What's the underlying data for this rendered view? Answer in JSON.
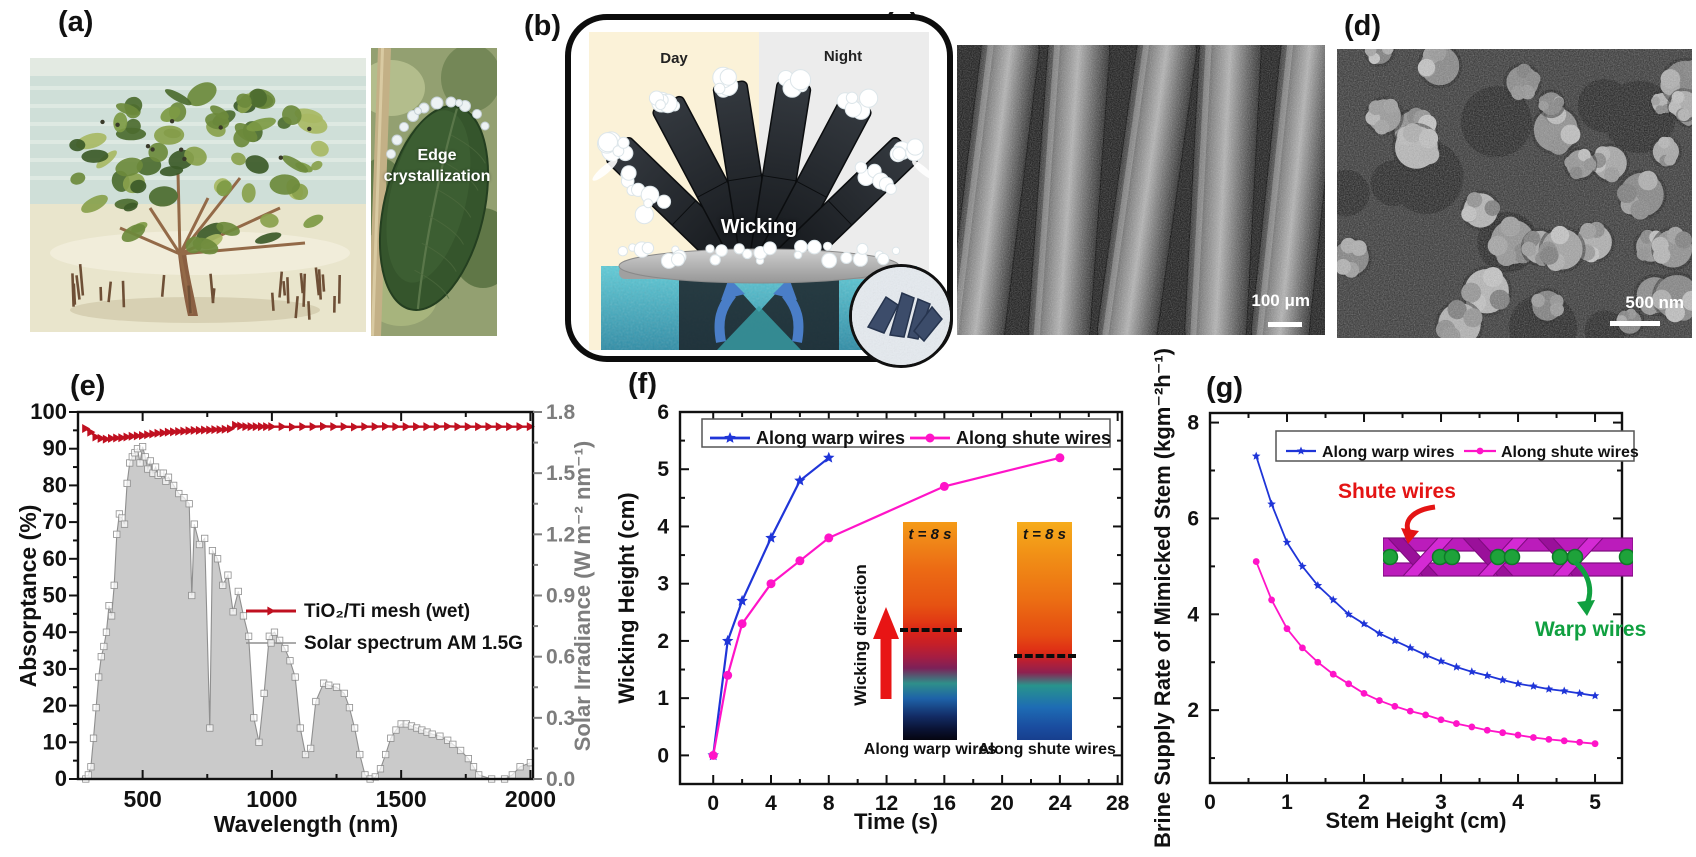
{
  "panels": {
    "a": "(a)",
    "b": "(b)",
    "c": "(c)",
    "d": "(d)",
    "e": "(e)",
    "f": "(f)",
    "g": "(g)"
  },
  "panel_a": {
    "leaf_label": "Edge crystallization"
  },
  "panel_b": {
    "day": "Day",
    "night": "Night",
    "wicking": "Wicking"
  },
  "panel_c": {
    "scale_bar": "100 μm"
  },
  "panel_d": {
    "scale_bar": "500 nm"
  },
  "panel_f_inset": {
    "t_label": "t = 8 s",
    "direction": "Wicking direction",
    "caption_left": "Along warp wires",
    "caption_right": "Along shute wires"
  },
  "panel_g_inset": {
    "shute": "Shute wires",
    "warp": "Warp wires"
  },
  "colors": {
    "warp_blue": "#1f35d8",
    "shute_magenta": "#ff14c8",
    "absorptance_red": "#c01020",
    "spectrum_gray": "#8f8f8f",
    "spectrum_fill": "#cacaca",
    "right_axis_gray": "#7d7d7d",
    "shute_label_red": "#e41414",
    "warp_label_green": "#10a040"
  },
  "chart_data": [
    {
      "id": "e",
      "type": "area",
      "title": "",
      "xlabel": "Wavelength (nm)",
      "ylabel_left": "Absorptance (%)",
      "ylabel_right": "Solar Irradiance (W m⁻² nm⁻¹)",
      "xlim": [
        250,
        2010
      ],
      "ylim_left": [
        0,
        100
      ],
      "ylim_right": [
        0,
        1.8
      ],
      "xticks": [
        500,
        1000,
        1500,
        2000
      ],
      "xminor": [
        750,
        1250,
        1750
      ],
      "yticks_left": [
        0,
        10,
        20,
        30,
        40,
        50,
        60,
        70,
        80,
        90,
        100
      ],
      "yminor_left": [
        5,
        15,
        25,
        35,
        45,
        55,
        65,
        75,
        85,
        95
      ],
      "yticks_right": {
        "values": [
          0,
          0.3,
          0.6,
          0.9,
          1.2,
          1.5,
          1.8
        ],
        "labels": [
          "0.0",
          "0.3",
          "0.6",
          "0.9",
          "1.2",
          "1.5",
          "1.8"
        ]
      },
      "yminor_right": [
        0.15,
        0.45,
        0.75,
        1.05,
        1.35,
        1.65
      ],
      "legend": {
        "position": "center-right-inside",
        "box": false,
        "items": [
          "TiO₂/Ti mesh (wet)",
          "Solar spectrum AM 1.5G"
        ]
      },
      "series": [
        {
          "name": "Solar spectrum AM 1.5G",
          "axis": "right",
          "type": "area",
          "marker": "square",
          "color": "#8f8f8f",
          "fill": "#cacaca",
          "data": [
            [
              280,
              0
            ],
            [
              290,
              0.02
            ],
            [
              300,
              0.06
            ],
            [
              310,
              0.2
            ],
            [
              320,
              0.35
            ],
            [
              330,
              0.5
            ],
            [
              340,
              0.6
            ],
            [
              350,
              0.65
            ],
            [
              360,
              0.72
            ],
            [
              370,
              0.85
            ],
            [
              380,
              0.8
            ],
            [
              390,
              0.95
            ],
            [
              400,
              1.2
            ],
            [
              410,
              1.3
            ],
            [
              420,
              1.28
            ],
            [
              430,
              1.25
            ],
            [
              440,
              1.45
            ],
            [
              450,
              1.55
            ],
            [
              460,
              1.58
            ],
            [
              470,
              1.6
            ],
            [
              480,
              1.62
            ],
            [
              490,
              1.55
            ],
            [
              500,
              1.63
            ],
            [
              510,
              1.58
            ],
            [
              520,
              1.52
            ],
            [
              530,
              1.56
            ],
            [
              540,
              1.5
            ],
            [
              550,
              1.53
            ],
            [
              560,
              1.49
            ],
            [
              570,
              1.5
            ],
            [
              580,
              1.5
            ],
            [
              590,
              1.46
            ],
            [
              600,
              1.48
            ],
            [
              620,
              1.44
            ],
            [
              640,
              1.4
            ],
            [
              660,
              1.38
            ],
            [
              680,
              1.35
            ],
            [
              690,
              0.9
            ],
            [
              700,
              1.25
            ],
            [
              720,
              1.15
            ],
            [
              740,
              1.18
            ],
            [
              760,
              0.25
            ],
            [
              770,
              1.12
            ],
            [
              790,
              1.08
            ],
            [
              810,
              0.95
            ],
            [
              830,
              1.0
            ],
            [
              850,
              0.82
            ],
            [
              870,
              0.92
            ],
            [
              890,
              0.8
            ],
            [
              910,
              0.7
            ],
            [
              930,
              0.3
            ],
            [
              950,
              0.18
            ],
            [
              970,
              0.42
            ],
            [
              990,
              0.7
            ],
            [
              1010,
              0.72
            ],
            [
              1030,
              0.68
            ],
            [
              1050,
              0.64
            ],
            [
              1070,
              0.58
            ],
            [
              1090,
              0.5
            ],
            [
              1110,
              0.25
            ],
            [
              1130,
              0.12
            ],
            [
              1150,
              0.15
            ],
            [
              1170,
              0.38
            ],
            [
              1200,
              0.47
            ],
            [
              1220,
              0.46
            ],
            [
              1250,
              0.45
            ],
            [
              1280,
              0.42
            ],
            [
              1300,
              0.35
            ],
            [
              1320,
              0.25
            ],
            [
              1340,
              0.12
            ],
            [
              1360,
              0.02
            ],
            [
              1380,
              0
            ],
            [
              1400,
              0.01
            ],
            [
              1420,
              0.05
            ],
            [
              1440,
              0.12
            ],
            [
              1460,
              0.2
            ],
            [
              1480,
              0.24
            ],
            [
              1500,
              0.27
            ],
            [
              1520,
              0.27
            ],
            [
              1540,
              0.26
            ],
            [
              1560,
              0.25
            ],
            [
              1580,
              0.24
            ],
            [
              1600,
              0.23
            ],
            [
              1620,
              0.22
            ],
            [
              1650,
              0.21
            ],
            [
              1680,
              0.19
            ],
            [
              1700,
              0.17
            ],
            [
              1730,
              0.14
            ],
            [
              1760,
              0.1
            ],
            [
              1780,
              0.06
            ],
            [
              1800,
              0.02
            ],
            [
              1850,
              0
            ],
            [
              1900,
              0
            ],
            [
              1930,
              0.02
            ],
            [
              1960,
              0.06
            ],
            [
              2000,
              0.08
            ]
          ]
        },
        {
          "name": "TiO₂/Ti mesh (wet)",
          "axis": "left",
          "type": "line",
          "marker": "tri",
          "color": "#c01020",
          "data": [
            [
              280,
              95.5
            ],
            [
              300,
              94.5
            ],
            [
              320,
              93.2
            ],
            [
              340,
              92.8
            ],
            [
              360,
              92.6
            ],
            [
              380,
              92.8
            ],
            [
              400,
              92.9
            ],
            [
              420,
              93.0
            ],
            [
              440,
              93.2
            ],
            [
              460,
              93.4
            ],
            [
              480,
              93.5
            ],
            [
              500,
              93.6
            ],
            [
              520,
              93.8
            ],
            [
              540,
              94.0
            ],
            [
              560,
              94.2
            ],
            [
              580,
              94.3
            ],
            [
              600,
              94.5
            ],
            [
              620,
              94.6
            ],
            [
              640,
              94.7
            ],
            [
              660,
              94.8
            ],
            [
              680,
              94.9
            ],
            [
              700,
              95.0
            ],
            [
              720,
              95.0
            ],
            [
              740,
              95.1
            ],
            [
              760,
              95.1
            ],
            [
              780,
              95.2
            ],
            [
              800,
              95.2
            ],
            [
              820,
              95.3
            ],
            [
              840,
              95.4
            ],
            [
              860,
              96.4
            ],
            [
              880,
              96.2
            ],
            [
              900,
              96.0
            ],
            [
              920,
              96.0
            ],
            [
              940,
              96.0
            ],
            [
              960,
              96.0
            ],
            [
              980,
              96.0
            ],
            [
              1000,
              96.0
            ],
            [
              1040,
              96.0
            ],
            [
              1080,
              95.9
            ],
            [
              1120,
              96.0
            ],
            [
              1160,
              96.0
            ],
            [
              1200,
              96.1
            ],
            [
              1240,
              96.0
            ],
            [
              1280,
              96.0
            ],
            [
              1320,
              95.9
            ],
            [
              1360,
              96.0
            ],
            [
              1400,
              96.0
            ],
            [
              1440,
              96.1
            ],
            [
              1480,
              96.0
            ],
            [
              1520,
              96.0
            ],
            [
              1560,
              96.0
            ],
            [
              1600,
              96.0
            ],
            [
              1640,
              96.0
            ],
            [
              1680,
              96.1
            ],
            [
              1720,
              96.0
            ],
            [
              1760,
              96.0
            ],
            [
              1800,
              96.0
            ],
            [
              1840,
              96.0
            ],
            [
              1880,
              96.0
            ],
            [
              1920,
              96.0
            ],
            [
              1960,
              96.0
            ],
            [
              2000,
              96.0
            ]
          ]
        }
      ]
    },
    {
      "id": "f",
      "type": "line",
      "title": "",
      "xlabel": "Time (s)",
      "ylabel": "Wicking Height (cm)",
      "xlim": [
        -2.3,
        28.3
      ],
      "ylim": [
        -0.5,
        6
      ],
      "xticks": [
        0,
        4,
        8,
        12,
        16,
        20,
        24,
        28
      ],
      "xminor": [
        2,
        6,
        10,
        14,
        18,
        22,
        26
      ],
      "yticks": [
        0,
        1,
        2,
        3,
        4,
        5,
        6
      ],
      "yminor": [
        0.5,
        1.5,
        2.5,
        3.5,
        4.5,
        5.5
      ],
      "legend": {
        "position": "top-inside",
        "box": true,
        "items": [
          "Along warp wires",
          "Along shute wires"
        ]
      },
      "series": [
        {
          "name": "Along warp wires",
          "marker": "star",
          "color": "#1f35d8",
          "data": [
            [
              0,
              0
            ],
            [
              1,
              2.0
            ],
            [
              2,
              2.7
            ],
            [
              4,
              3.8
            ],
            [
              6,
              4.8
            ],
            [
              8,
              5.2
            ]
          ]
        },
        {
          "name": "Along shute wires",
          "marker": "circle",
          "color": "#ff14c8",
          "data": [
            [
              0,
              0
            ],
            [
              1,
              1.4
            ],
            [
              2,
              2.3
            ],
            [
              4,
              3.0
            ],
            [
              6,
              3.4
            ],
            [
              8,
              3.8
            ],
            [
              16,
              4.7
            ],
            [
              24,
              5.2
            ]
          ]
        }
      ]
    },
    {
      "id": "g",
      "type": "line",
      "title": "",
      "xlabel": "Stem Height (cm)",
      "ylabel": "Brine Supply Rate of Mimicked Stem (kgm⁻²h⁻¹)",
      "xlim": [
        0,
        5.35
      ],
      "ylim": [
        0.48,
        8.2
      ],
      "xticks": [
        0,
        1,
        2,
        3,
        4,
        5
      ],
      "xminor": [
        0.5,
        1.5,
        2.5,
        3.5,
        4.5
      ],
      "yticks": [
        2,
        4,
        6,
        8
      ],
      "yminor": [
        1,
        3,
        5,
        7
      ],
      "legend": {
        "position": "top-inside",
        "box": true,
        "items": [
          "Along warp wires",
          "Along shute wires"
        ]
      },
      "series": [
        {
          "name": "Along warp wires",
          "marker": "star",
          "color": "#1f35d8",
          "data": [
            [
              0.6,
              7.3
            ],
            [
              0.8,
              6.3
            ],
            [
              1,
              5.5
            ],
            [
              1.2,
              5.0
            ],
            [
              1.4,
              4.6
            ],
            [
              1.6,
              4.3
            ],
            [
              1.8,
              4.0
            ],
            [
              2,
              3.8
            ],
            [
              2.2,
              3.6
            ],
            [
              2.4,
              3.45
            ],
            [
              2.6,
              3.3
            ],
            [
              2.8,
              3.15
            ],
            [
              3,
              3.02
            ],
            [
              3.2,
              2.9
            ],
            [
              3.4,
              2.8
            ],
            [
              3.6,
              2.72
            ],
            [
              3.8,
              2.63
            ],
            [
              4,
              2.55
            ],
            [
              4.2,
              2.5
            ],
            [
              4.4,
              2.44
            ],
            [
              4.6,
              2.4
            ],
            [
              4.8,
              2.35
            ],
            [
              5,
              2.3
            ]
          ]
        },
        {
          "name": "Along shute wires",
          "marker": "circle",
          "color": "#ff14c8",
          "data": [
            [
              0.6,
              5.1
            ],
            [
              0.8,
              4.3
            ],
            [
              1,
              3.7
            ],
            [
              1.2,
              3.3
            ],
            [
              1.4,
              3.0
            ],
            [
              1.6,
              2.75
            ],
            [
              1.8,
              2.55
            ],
            [
              2,
              2.35
            ],
            [
              2.2,
              2.2
            ],
            [
              2.4,
              2.08
            ],
            [
              2.6,
              1.98
            ],
            [
              2.8,
              1.9
            ],
            [
              3,
              1.8
            ],
            [
              3.2,
              1.72
            ],
            [
              3.4,
              1.65
            ],
            [
              3.6,
              1.58
            ],
            [
              3.8,
              1.53
            ],
            [
              4,
              1.48
            ],
            [
              4.2,
              1.43
            ],
            [
              4.4,
              1.39
            ],
            [
              4.6,
              1.36
            ],
            [
              4.8,
              1.33
            ],
            [
              5,
              1.3
            ]
          ]
        }
      ]
    }
  ]
}
